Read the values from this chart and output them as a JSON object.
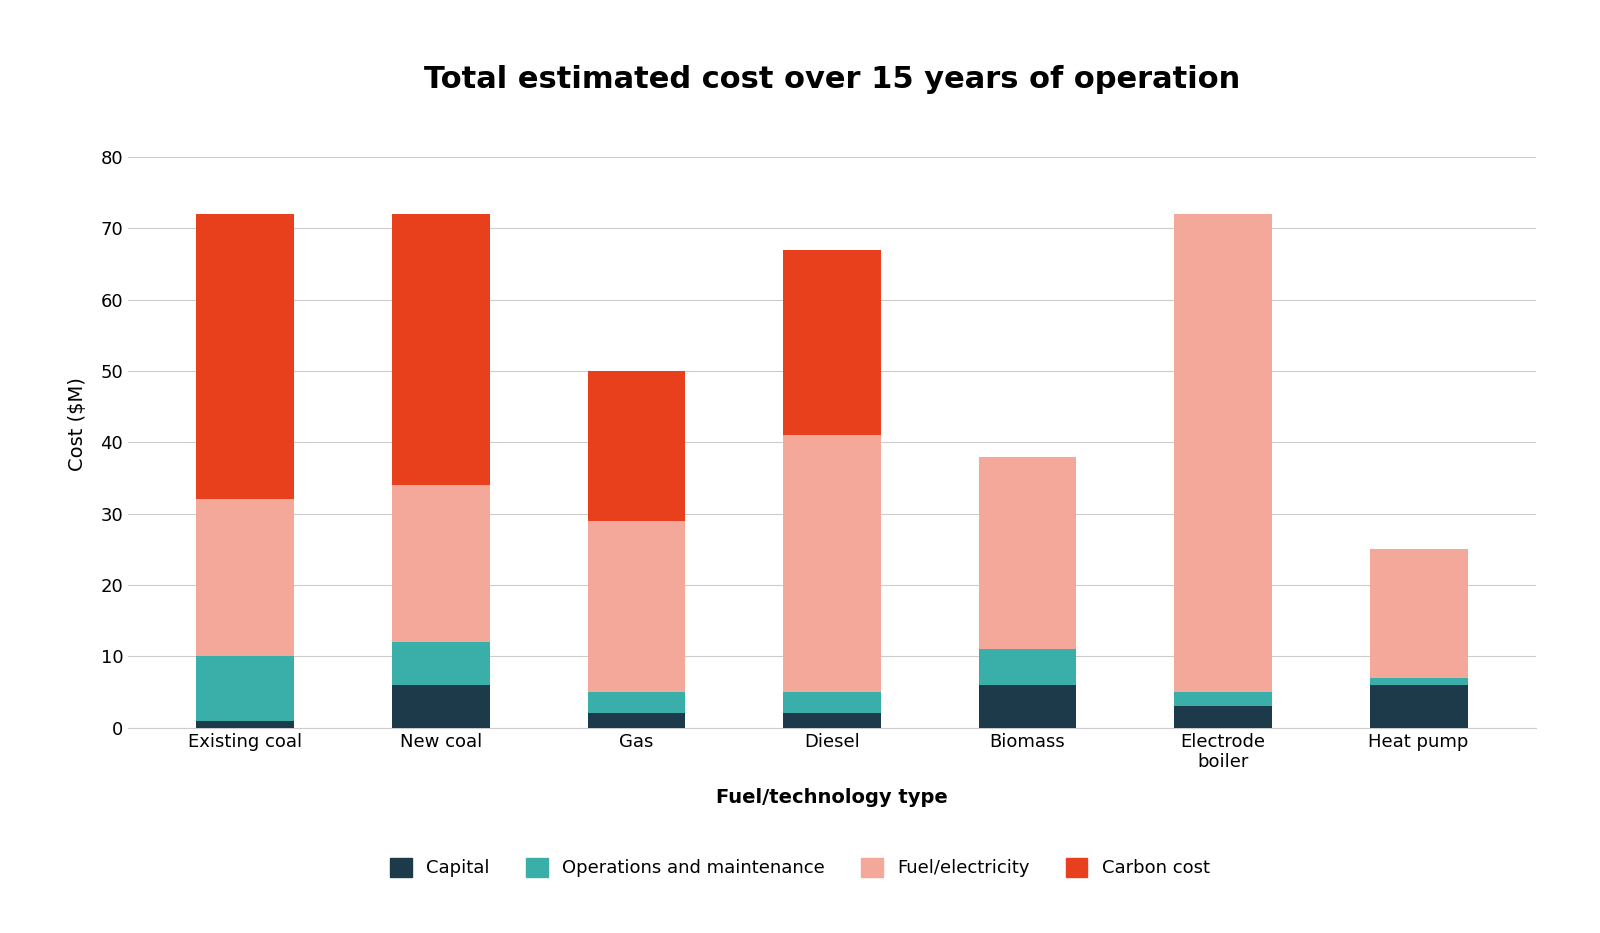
{
  "title": "Total estimated cost over 15 years of operation",
  "xlabel": "Fuel/technology type",
  "ylabel": "Cost ($M)",
  "categories": [
    "Existing coal",
    "New coal",
    "Gas",
    "Diesel",
    "Biomass",
    "Electrode\nboiler",
    "Heat pump"
  ],
  "capital": [
    1,
    6,
    2,
    2,
    6,
    3,
    6
  ],
  "om": [
    9,
    6,
    3,
    3,
    5,
    2,
    1
  ],
  "fuel": [
    22,
    22,
    24,
    36,
    27,
    67,
    18
  ],
  "carbon": [
    40,
    38,
    21,
    26,
    0,
    0,
    0
  ],
  "colors": {
    "capital": "#1c3a4a",
    "om": "#3aafa9",
    "fuel": "#f4a89a",
    "carbon": "#e8401c"
  },
  "legend_labels": [
    "Capital",
    "Operations and maintenance",
    "Fuel/electricity",
    "Carbon cost"
  ],
  "ylim": [
    0,
    85
  ],
  "yticks": [
    0,
    10,
    20,
    30,
    40,
    50,
    60,
    70,
    80
  ],
  "background_color": "#ffffff",
  "legend_bg": "#e8e8e8",
  "title_fontsize": 22,
  "axis_label_fontsize": 14,
  "tick_fontsize": 13,
  "legend_fontsize": 13,
  "bar_width": 0.5
}
